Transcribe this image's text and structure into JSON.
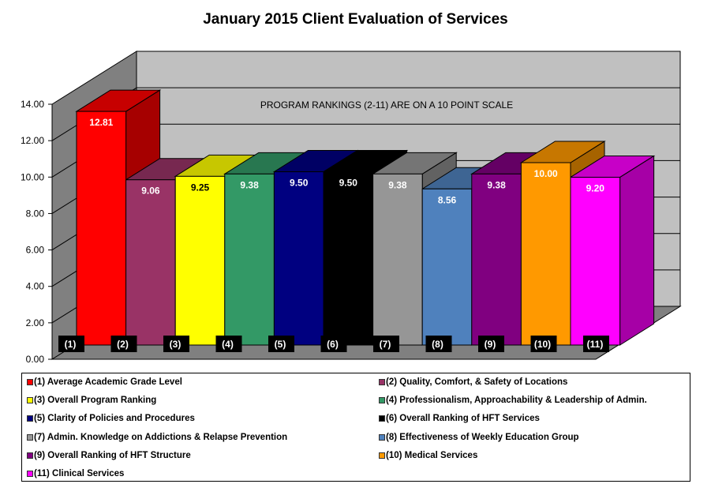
{
  "chart_data": {
    "type": "bar",
    "title": "January 2015 Client Evaluation of Services",
    "annotation": "PROGRAM RANKINGS (2-11) ARE ON A 10 POINT SCALE",
    "categories": [
      "(1)",
      "(2)",
      "(3)",
      "(4)",
      "(5)",
      "(6)",
      "(7)",
      "(8)",
      "(9)",
      "(10)",
      "(11)"
    ],
    "values": [
      12.81,
      9.06,
      9.25,
      9.38,
      9.5,
      9.5,
      9.38,
      8.56,
      9.38,
      10.0,
      9.2
    ],
    "data_labels": [
      "12.81",
      "9.06",
      "9.25",
      "9.38",
      "9.50",
      "9.50",
      "9.38",
      "8.56",
      "9.38",
      "10.00",
      "9.20"
    ],
    "colors": [
      "#ff0000",
      "#993366",
      "#ffff00",
      "#339966",
      "#000080",
      "#000000",
      "#969696",
      "#4f81bd",
      "#800080",
      "#ff9900",
      "#ff00ff"
    ],
    "ylim": [
      0,
      14
    ],
    "yticks": [
      "0.00",
      "2.00",
      "4.00",
      "6.00",
      "8.00",
      "10.00",
      "12.00",
      "14.00"
    ],
    "grid": true,
    "style": "3d",
    "legend_position": "bottom",
    "legend": [
      "(1) Average Academic Grade Level",
      "(2) Quality, Comfort, & Safety of Locations",
      "(3) Overall Program Ranking",
      "(4) Professionalism, Approachability  & Leadership of Admin.",
      "(5) Clarity of Policies and Procedures",
      "(6) Overall Ranking of HFT Services",
      "(7) Admin. Knowledge on Addictions & Relapse Prevention",
      "(8) Effectiveness of Weekly Education Group",
      "(9) Overall Ranking of HFT Structure",
      "(10) Medical Services",
      "(11) Clinical Services"
    ]
  }
}
